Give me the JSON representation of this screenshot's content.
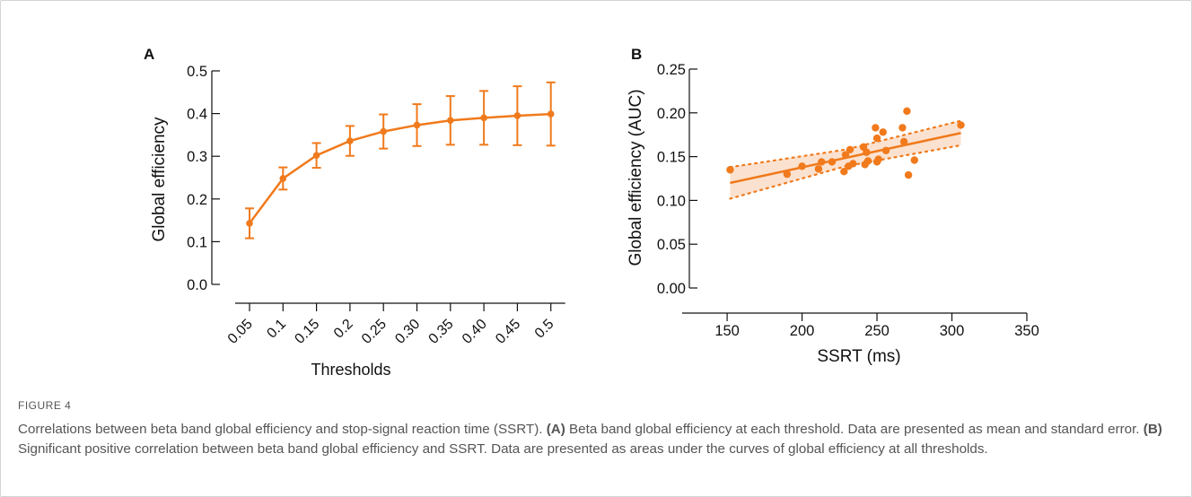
{
  "accent_color": "#f07a1c",
  "chart_data": [
    {
      "panel": "A",
      "type": "line",
      "ylabel": "Global efficiency",
      "xlabel": "Thresholds",
      "categories": [
        "0.05",
        "0.1",
        "0.15",
        "0.2",
        "0.25",
        "0.30",
        "0.35",
        "0.40",
        "0.45",
        "0.5"
      ],
      "values": [
        0.143,
        0.248,
        0.302,
        0.336,
        0.358,
        0.373,
        0.384,
        0.39,
        0.395,
        0.399
      ],
      "errors": [
        0.035,
        0.026,
        0.029,
        0.035,
        0.04,
        0.049,
        0.057,
        0.063,
        0.069,
        0.074
      ],
      "ylim": [
        0,
        0.5
      ],
      "yticks": [
        "0.0",
        "0.1",
        "0.2",
        "0.3",
        "0.4",
        "0.5"
      ],
      "error_bars": "mean ± standard error"
    },
    {
      "panel": "B",
      "type": "scatter",
      "ylabel": "Global efficiency (AUC)",
      "xlabel": "SSRT (ms)",
      "xlim": [
        120,
        350
      ],
      "ylim": [
        0,
        0.25
      ],
      "xticks": [
        "150",
        "200",
        "250",
        "300",
        "350"
      ],
      "yticks": [
        "0.00",
        "0.05",
        "0.10",
        "0.15",
        "0.20",
        "0.25"
      ],
      "points": [
        {
          "x": 152,
          "y": 0.135
        },
        {
          "x": 190,
          "y": 0.13
        },
        {
          "x": 200,
          "y": 0.139
        },
        {
          "x": 211,
          "y": 0.136
        },
        {
          "x": 213,
          "y": 0.144
        },
        {
          "x": 220,
          "y": 0.144
        },
        {
          "x": 228,
          "y": 0.133
        },
        {
          "x": 229,
          "y": 0.152
        },
        {
          "x": 231,
          "y": 0.139
        },
        {
          "x": 232,
          "y": 0.158
        },
        {
          "x": 234,
          "y": 0.142
        },
        {
          "x": 241,
          "y": 0.161
        },
        {
          "x": 242,
          "y": 0.141
        },
        {
          "x": 243,
          "y": 0.155
        },
        {
          "x": 244,
          "y": 0.145
        },
        {
          "x": 249,
          "y": 0.183
        },
        {
          "x": 250,
          "y": 0.171
        },
        {
          "x": 250,
          "y": 0.144
        },
        {
          "x": 251,
          "y": 0.147
        },
        {
          "x": 254,
          "y": 0.178
        },
        {
          "x": 256,
          "y": 0.157
        },
        {
          "x": 267,
          "y": 0.183
        },
        {
          "x": 268,
          "y": 0.167
        },
        {
          "x": 270,
          "y": 0.202
        },
        {
          "x": 271,
          "y": 0.129
        },
        {
          "x": 275,
          "y": 0.146
        },
        {
          "x": 306,
          "y": 0.186
        }
      ],
      "fit_line": {
        "x": [
          152,
          306
        ],
        "y": [
          0.12,
          0.177
        ]
      },
      "ci_upper": {
        "x": [
          152,
          229,
          306
        ],
        "y": [
          0.138,
          0.158,
          0.191
        ]
      },
      "ci_lower": {
        "x": [
          152,
          229,
          306
        ],
        "y": [
          0.102,
          0.139,
          0.163
        ]
      }
    }
  ],
  "figure": {
    "label": "FIGURE 4",
    "caption_intro": "Correlations between beta band global efficiency and stop-signal reaction time (SSRT).",
    "caption_a_tag": "(A)",
    "caption_a": "Beta band global efficiency at each threshold. Data are presented as mean and standard error.",
    "caption_b_tag": "(B)",
    "caption_b": "Significant positive correlation between beta band global efficiency and SSRT. Data are presented as areas under the curves of global efficiency at all thresholds."
  }
}
